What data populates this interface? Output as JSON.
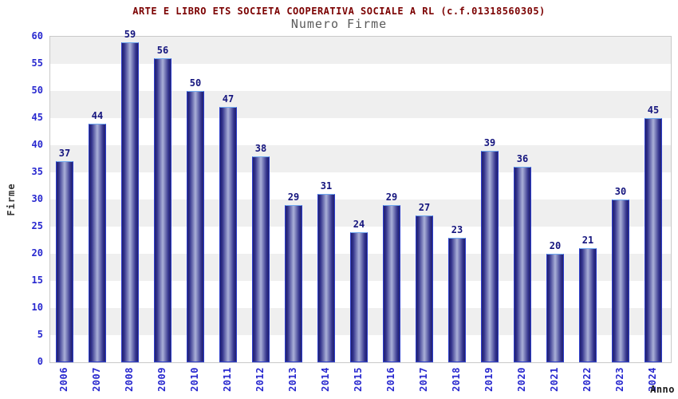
{
  "chart_data": {
    "type": "bar",
    "title": "ARTE E LIBRO ETS SOCIETA COOPERATIVA SOCIALE A RL (c.f.01318560305)",
    "subtitle": "Numero Firme",
    "xlabel": "Anno",
    "ylabel": "Firme",
    "categories": [
      "2006",
      "2007",
      "2008",
      "2009",
      "2010",
      "2011",
      "2012",
      "2013",
      "2014",
      "2015",
      "2016",
      "2017",
      "2018",
      "2019",
      "2020",
      "2021",
      "2022",
      "2023",
      "2024"
    ],
    "values": [
      37,
      44,
      59,
      56,
      50,
      47,
      38,
      29,
      31,
      24,
      29,
      27,
      23,
      39,
      36,
      20,
      21,
      30,
      45
    ],
    "ylim": [
      0,
      60
    ],
    "ytick_step": 5,
    "grid": "alternating-horizontal-bands",
    "legend": "none"
  },
  "colors": {
    "title": "#7b0000",
    "subtitle": "#5a5a5a",
    "axis_tick": "#2828cf",
    "value_label": "#15157e",
    "axis_title": "#333333",
    "xlabel_text": "#1a1a1a",
    "band_gray": "#efefef",
    "band_white": "#ffffff",
    "plot_border": "#c9c9c9",
    "bar_edge_dark": "#20206e",
    "bar_mid": "#32328c",
    "bar_center_light": "#aab0d8",
    "bar_border_side": "#2e3ecb",
    "bar_border_top": "#6fa8ef"
  }
}
